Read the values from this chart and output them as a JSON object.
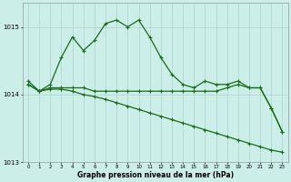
{
  "xlabel": "Graphe pression niveau de la mer (hPa)",
  "background_color": "#cceee8",
  "grid_color": "#aad4ce",
  "line_color": "#1a6b1a",
  "hours": [
    0,
    1,
    2,
    3,
    4,
    5,
    6,
    7,
    8,
    9,
    10,
    11,
    12,
    13,
    14,
    15,
    16,
    17,
    18,
    19,
    20,
    21,
    22,
    23
  ],
  "line1": [
    1014.2,
    1014.05,
    1014.15,
    1014.55,
    1014.85,
    1014.65,
    1014.8,
    1015.05,
    1015.1,
    1015.0,
    1015.1,
    1014.85,
    1014.55,
    1014.3,
    1014.15,
    1014.1,
    1014.2,
    1014.15,
    1014.15,
    1014.2,
    1014.1,
    1014.1,
    1013.8,
    1013.45
  ],
  "line2": [
    1014.15,
    1014.05,
    1014.1,
    1014.1,
    1014.1,
    1014.1,
    1014.05,
    1014.05,
    1014.05,
    1014.05,
    1014.05,
    1014.05,
    1014.05,
    1014.05,
    1014.05,
    1014.05,
    1014.05,
    1014.05,
    1014.1,
    1014.15,
    1014.1,
    1014.1,
    1013.8,
    1013.45
  ],
  "line3": [
    1014.15,
    1014.05,
    1014.08,
    1014.08,
    1014.05,
    1014.0,
    1013.97,
    1013.93,
    1013.88,
    1013.83,
    1013.78,
    1013.73,
    1013.68,
    1013.63,
    1013.58,
    1013.53,
    1013.48,
    1013.43,
    1013.38,
    1013.33,
    1013.28,
    1013.23,
    1013.18,
    1013.15
  ],
  "ylim": [
    1013.0,
    1015.35
  ],
  "yticks": [
    1013,
    1014,
    1015
  ],
  "xticks": [
    0,
    1,
    2,
    3,
    4,
    5,
    6,
    7,
    8,
    9,
    10,
    11,
    12,
    13,
    14,
    15,
    16,
    17,
    18,
    19,
    20,
    21,
    22,
    23
  ]
}
